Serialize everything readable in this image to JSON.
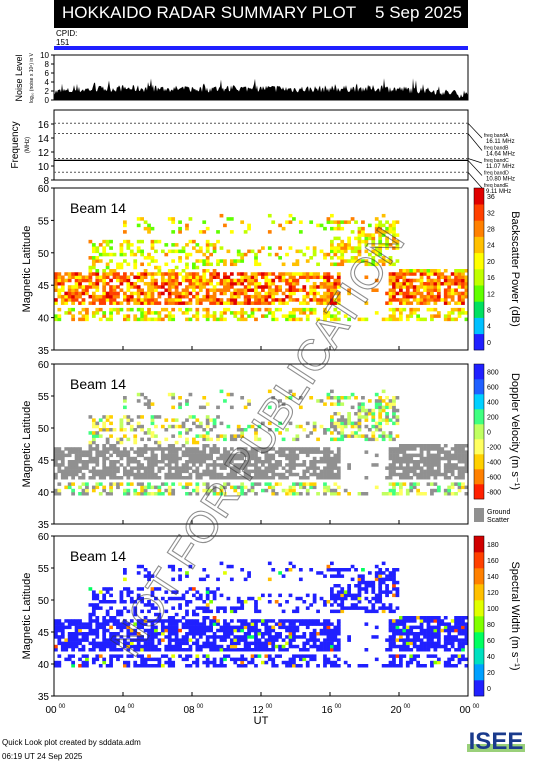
{
  "header": {
    "title": "HOKKAIDO RADAR SUMMARY PLOT",
    "date": "5 Sep 2025"
  },
  "cpid": {
    "label": "CPID:",
    "value": "151"
  },
  "footer": {
    "line1": "Quick Look plot created by sddata.adm",
    "line2": "06:19 UT 24 Sep 2025"
  },
  "logo_text": "ISEE",
  "watermark": "NOT FOR PUBLICATION",
  "chart_data": [
    {
      "type": "area",
      "ylabel": "Noise Level",
      "ylabel_small": "log₁₀ (noise x 10⁶) in V",
      "ylim": [
        0,
        10
      ],
      "yticks": [
        0,
        2,
        4,
        6,
        8,
        10
      ],
      "x": [
        0,
        2,
        4,
        6,
        8,
        10,
        12,
        14,
        16,
        18,
        20,
        22,
        24
      ],
      "values": [
        1.8,
        2.4,
        2.6,
        2.5,
        2.4,
        2.5,
        2.6,
        2.4,
        2.5,
        2.6,
        2.4,
        2.0,
        1.1
      ]
    },
    {
      "type": "line",
      "ylabel": "Frequency",
      "yunit": "(MHz)",
      "ylim": [
        8,
        18
      ],
      "yticks": [
        8,
        10,
        12,
        14,
        16
      ],
      "bands": [
        {
          "name": "freq bandA",
          "freq_label": "16.11 MHz",
          "value": 16.11
        },
        {
          "name": "freq bandB",
          "freq_label": "14.64 MHz",
          "value": 14.64
        },
        {
          "name": "freq bandC",
          "freq_label": "11.07 MHz",
          "value": 11.07
        },
        {
          "name": "freq bandD",
          "freq_label": "10.80 MHz",
          "value": 10.8
        },
        {
          "name": "freq bandE",
          "freq_label": "9.11 MHz",
          "value": 9.11
        }
      ],
      "line_value": 10.8
    },
    {
      "type": "heatmap",
      "label": "Beam 14",
      "ylabel": "Magnetic Latitude",
      "ylim": [
        35,
        60
      ],
      "yticks": [
        35,
        40,
        45,
        50,
        55,
        60
      ],
      "colorbar_label": "Backscatter Power (dB)",
      "colorbar_ticks": [
        0,
        4,
        8,
        12,
        16,
        20,
        24,
        28,
        32,
        36
      ],
      "colorbar_colors": [
        "#2020ff",
        "#00c0ff",
        "#00e060",
        "#60ff00",
        "#c0ff00",
        "#ffff00",
        "#ffc000",
        "#ff8000",
        "#ff4000",
        "#e00000"
      ]
    },
    {
      "type": "heatmap",
      "label": "Beam 14",
      "ylabel": "Magnetic Latitude",
      "ylim": [
        35,
        60
      ],
      "yticks": [
        35,
        40,
        45,
        50,
        55,
        60
      ],
      "colorbar_label": "Doppler Velocity (m s⁻¹)",
      "colorbar_ticks": [
        -800,
        -600,
        -400,
        -200,
        0,
        200,
        400,
        600,
        800
      ],
      "colorbar_colors": [
        "#ff2000",
        "#ff8000",
        "#ffd000",
        "#ffff60",
        "#c0ff60",
        "#40ff80",
        "#00d0ff",
        "#2060ff",
        "#2020ff"
      ],
      "ground_scatter_label": "Ground Scatter",
      "ground_scatter_color": "#909090"
    },
    {
      "type": "heatmap",
      "label": "Beam 14",
      "ylabel": "Magnetic Latitude",
      "ylim": [
        35,
        60
      ],
      "yticks": [
        35,
        40,
        45,
        50,
        55,
        60
      ],
      "colorbar_label": "Spectral Width (m s⁻¹)",
      "colorbar_ticks": [
        0,
        20,
        40,
        60,
        80,
        100,
        120,
        140,
        160,
        180
      ],
      "colorbar_colors": [
        "#2020ff",
        "#00a0ff",
        "#00e0c0",
        "#00ff60",
        "#80ff00",
        "#e0ff00",
        "#ffc000",
        "#ff8000",
        "#ff4000",
        "#d00000"
      ]
    }
  ],
  "xaxis": {
    "label": "UT",
    "hours": [
      "00",
      "04",
      "08",
      "12",
      "16",
      "20",
      "00"
    ],
    "sup": "00",
    "xlim": [
      0,
      24
    ]
  }
}
